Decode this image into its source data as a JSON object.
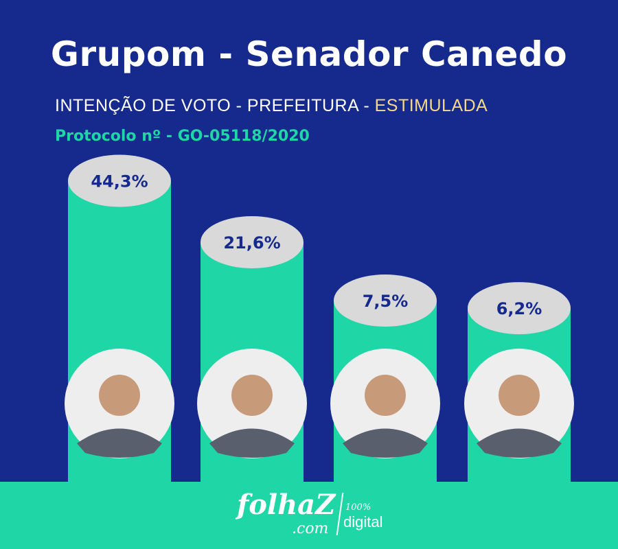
{
  "header": {
    "title": "Grupom - Senador Canedo",
    "subtitle_main": "INTENÇÃO DE VOTO - PREFEITURA - ",
    "subtitle_highlight": "ESTIMULADA",
    "protocol": "Protocolo nº - GO-05118/2020"
  },
  "colors": {
    "background": "#152a8c",
    "bar": "#1ed6a6",
    "label_ellipse": "#d9d9d9",
    "label_text": "#152a8c",
    "accent_yellow": "#f5d98a"
  },
  "chart_data": {
    "type": "bar",
    "categories": [
      "",
      "",
      "",
      ""
    ],
    "values": [
      44.3,
      21.6,
      7.5,
      6.2
    ],
    "value_labels": [
      "44,3%",
      "21,6%",
      "7,5%",
      "6,2%"
    ],
    "title": "",
    "xlabel": "",
    "ylabel": "",
    "ylim": [
      0,
      50
    ],
    "grid": false,
    "legend": "none"
  },
  "footer": {
    "brand_name": "folhaZ",
    "brand_domain": ".com",
    "brand_tag_number": "100%",
    "brand_tag_word": "digital"
  }
}
